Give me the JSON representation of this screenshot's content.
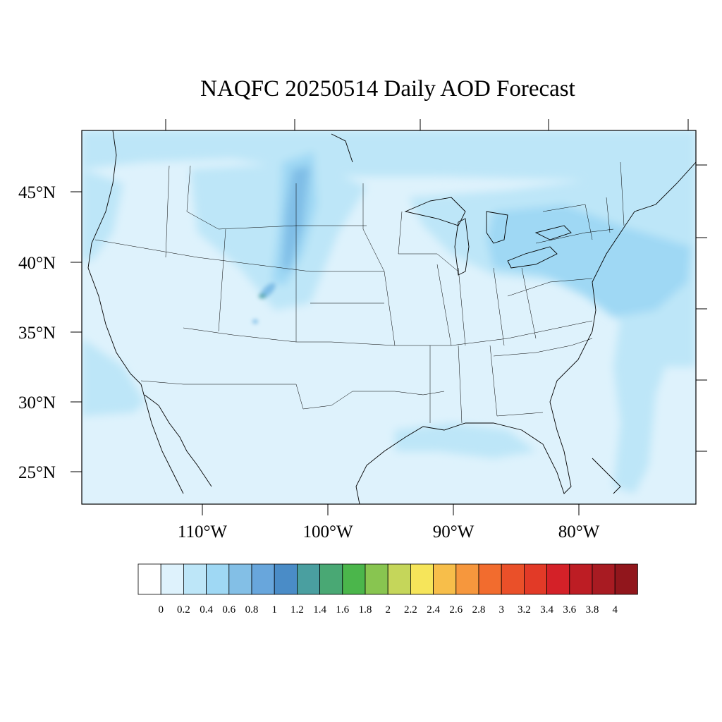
{
  "title": "NAQFC 20250514 Daily AOD Forecast",
  "map": {
    "projection": "lambert-conformal",
    "region": "CONUS",
    "lat_labels": [
      "45°N",
      "40°N",
      "35°N",
      "30°N",
      "25°N"
    ],
    "lon_labels": [
      "110°W",
      "100°W",
      "90°W",
      "80°W"
    ],
    "features": {
      "background_aod_color": "#def2fc",
      "plume_light_color": "#bde6f8",
      "plume_mid_color": "#9fd8f4",
      "plume_strong_color": "#7fbde6",
      "plume_peak_color": "#4a9fa0"
    }
  },
  "colorbar": {
    "labels": [
      "0",
      "0.2",
      "0.4",
      "0.6",
      "0.8",
      "1",
      "1.2",
      "1.4",
      "1.6",
      "1.8",
      "2",
      "2.2",
      "2.4",
      "2.6",
      "2.8",
      "3",
      "3.2",
      "3.4",
      "3.6",
      "3.8",
      "4"
    ],
    "colors": [
      "#ffffff",
      "#def2fc",
      "#bde6f8",
      "#9fd8f4",
      "#83bfe6",
      "#68a6dc",
      "#4a8cc7",
      "#4a9fa0",
      "#49a874",
      "#4bb64b",
      "#88c550",
      "#c5d65a",
      "#f6e55a",
      "#f7be4a",
      "#f6973d",
      "#f26c2e",
      "#ea5029",
      "#e23a27",
      "#d42128",
      "#bd1d24",
      "#a81b22",
      "#91161c"
    ]
  }
}
